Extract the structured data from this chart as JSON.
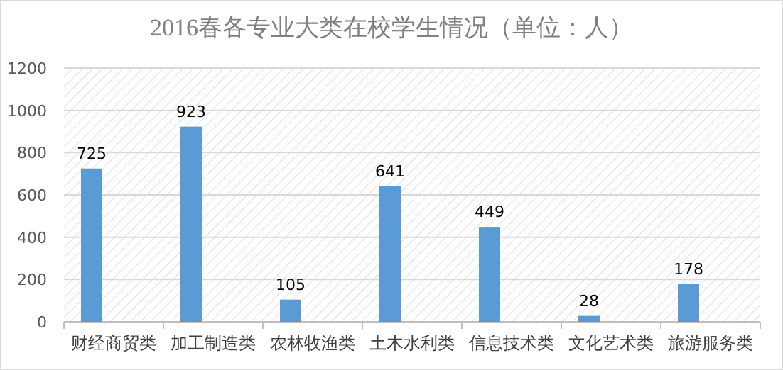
{
  "chart_data": {
    "type": "bar",
    "title": "2016春各专业大类在校学生情况（单位：人）",
    "categories": [
      "财经商贸类",
      "加工制造类",
      "农林牧渔类",
      "土木水利类",
      "信息技术类",
      "文化艺术类",
      "旅游服务类"
    ],
    "values": [
      725,
      923,
      105,
      641,
      449,
      28,
      178
    ],
    "color": "#5b9bd5",
    "ylim": [
      0,
      1200
    ],
    "yticks": [
      0,
      200,
      400,
      600,
      800,
      1000,
      1200
    ],
    "grid": "y",
    "data_labels": true
  }
}
